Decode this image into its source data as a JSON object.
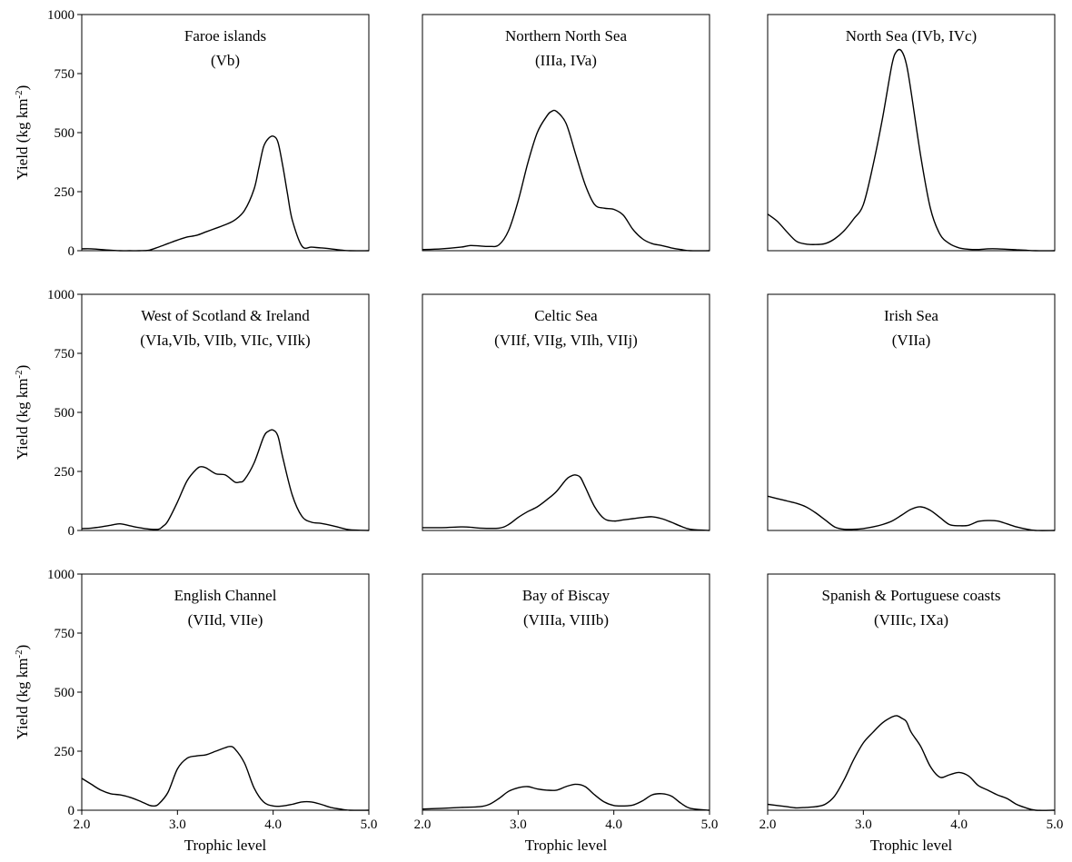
{
  "chart_data": [
    {
      "type": "line",
      "title": "Faroe islands",
      "subtitle": "(Vb)",
      "xlabel": "",
      "ylabel": "Yield (kg km-2)",
      "xlim": [
        2.0,
        5.0
      ],
      "ylim": [
        0,
        1000
      ],
      "x": [
        2.0,
        2.1,
        2.2,
        2.3,
        2.4,
        2.5,
        2.6,
        2.7,
        2.8,
        2.9,
        3.0,
        3.1,
        3.2,
        3.3,
        3.4,
        3.5,
        3.6,
        3.7,
        3.8,
        3.85,
        3.9,
        3.95,
        4.0,
        4.05,
        4.1,
        4.15,
        4.2,
        4.3,
        4.4,
        4.5,
        4.6,
        4.7,
        4.8,
        5.0
      ],
      "y": [
        8,
        8,
        5,
        2,
        0,
        0,
        0,
        2,
        15,
        30,
        45,
        58,
        65,
        80,
        95,
        110,
        130,
        170,
        260,
        350,
        440,
        475,
        485,
        460,
        360,
        240,
        130,
        20,
        15,
        12,
        8,
        3,
        0,
        0
      ]
    },
    {
      "type": "line",
      "title": "Northern North Sea",
      "subtitle": "(IIIa, IVa)",
      "xlabel": "",
      "ylabel": "",
      "xlim": [
        2.0,
        5.0
      ],
      "ylim": [
        0,
        1000
      ],
      "x": [
        2.0,
        2.2,
        2.4,
        2.5,
        2.6,
        2.7,
        2.8,
        2.9,
        3.0,
        3.1,
        3.2,
        3.3,
        3.35,
        3.4,
        3.5,
        3.6,
        3.7,
        3.8,
        3.9,
        4.0,
        4.1,
        4.2,
        4.3,
        4.4,
        4.5,
        4.6,
        4.7,
        4.8,
        5.0
      ],
      "y": [
        5,
        8,
        15,
        22,
        20,
        18,
        25,
        85,
        210,
        370,
        500,
        570,
        590,
        590,
        540,
        410,
        280,
        195,
        180,
        175,
        150,
        90,
        50,
        30,
        22,
        12,
        5,
        0,
        0
      ]
    },
    {
      "type": "line",
      "title": "North Sea (IVb, IVc)",
      "subtitle": "",
      "xlabel": "",
      "ylabel": "",
      "xlim": [
        2.0,
        5.0
      ],
      "ylim": [
        0,
        1000
      ],
      "x": [
        2.0,
        2.1,
        2.2,
        2.3,
        2.4,
        2.5,
        2.6,
        2.7,
        2.8,
        2.9,
        3.0,
        3.1,
        3.2,
        3.3,
        3.35,
        3.4,
        3.45,
        3.5,
        3.6,
        3.7,
        3.8,
        3.9,
        4.0,
        4.1,
        4.2,
        4.3,
        4.4,
        4.5,
        4.6,
        4.7,
        4.8,
        5.0
      ],
      "y": [
        155,
        125,
        80,
        40,
        28,
        26,
        30,
        50,
        85,
        135,
        195,
        360,
        560,
        790,
        845,
        845,
        790,
        670,
        400,
        180,
        70,
        30,
        12,
        6,
        5,
        8,
        8,
        6,
        4,
        2,
        0,
        0
      ]
    },
    {
      "type": "line",
      "title": "West of Scotland & Ireland",
      "subtitle": "(VIa,VIb, VIIb, VIIc, VIIk)",
      "xlabel": "",
      "ylabel": "Yield (kg km-2)",
      "xlim": [
        2.0,
        5.0
      ],
      "ylim": [
        0,
        1000
      ],
      "x": [
        2.0,
        2.1,
        2.2,
        2.3,
        2.4,
        2.5,
        2.6,
        2.7,
        2.8,
        2.85,
        2.9,
        3.0,
        3.1,
        3.2,
        3.25,
        3.3,
        3.4,
        3.5,
        3.6,
        3.65,
        3.7,
        3.8,
        3.9,
        3.95,
        4.0,
        4.05,
        4.1,
        4.2,
        4.3,
        4.4,
        4.5,
        4.6,
        4.7,
        4.8,
        5.0
      ],
      "y": [
        8,
        10,
        15,
        22,
        28,
        20,
        12,
        6,
        5,
        18,
        40,
        120,
        210,
        260,
        270,
        265,
        240,
        235,
        205,
        205,
        215,
        285,
        395,
        420,
        425,
        400,
        310,
        150,
        60,
        35,
        30,
        22,
        12,
        3,
        0
      ]
    },
    {
      "type": "line",
      "title": "Celtic Sea",
      "subtitle": "(VIIf, VIIg, VIIh, VIIj)",
      "xlabel": "",
      "ylabel": "",
      "xlim": [
        2.0,
        5.0
      ],
      "ylim": [
        0,
        1000
      ],
      "x": [
        2.0,
        2.2,
        2.4,
        2.5,
        2.6,
        2.8,
        2.9,
        3.0,
        3.1,
        3.2,
        3.3,
        3.4,
        3.5,
        3.55,
        3.6,
        3.65,
        3.7,
        3.8,
        3.9,
        4.0,
        4.1,
        4.2,
        4.3,
        4.4,
        4.5,
        4.6,
        4.7,
        4.8,
        5.0
      ],
      "y": [
        12,
        12,
        15,
        14,
        10,
        10,
        25,
        55,
        80,
        100,
        130,
        165,
        215,
        230,
        235,
        225,
        185,
        100,
        50,
        40,
        45,
        50,
        55,
        58,
        50,
        35,
        18,
        5,
        0
      ]
    },
    {
      "type": "line",
      "title": "Irish Sea",
      "subtitle": "(VIIa)",
      "xlabel": "",
      "ylabel": "",
      "xlim": [
        2.0,
        5.0
      ],
      "ylim": [
        0,
        1000
      ],
      "x": [
        2.0,
        2.1,
        2.2,
        2.3,
        2.4,
        2.5,
        2.6,
        2.7,
        2.8,
        2.9,
        3.0,
        3.1,
        3.2,
        3.3,
        3.4,
        3.5,
        3.6,
        3.7,
        3.8,
        3.9,
        4.0,
        4.1,
        4.2,
        4.3,
        4.4,
        4.5,
        4.6,
        4.7,
        4.8,
        5.0
      ],
      "y": [
        145,
        135,
        125,
        115,
        100,
        75,
        45,
        15,
        5,
        5,
        8,
        15,
        25,
        40,
        65,
        90,
        100,
        85,
        55,
        25,
        20,
        22,
        38,
        42,
        40,
        28,
        15,
        6,
        0,
        0
      ]
    },
    {
      "type": "line",
      "title": "English Channel",
      "subtitle": "(VIId, VIIe)",
      "xlabel": "Trophic level",
      "ylabel": "Yield (kg km-2)",
      "xlim": [
        2.0,
        5.0
      ],
      "ylim": [
        0,
        1000
      ],
      "x": [
        2.0,
        2.1,
        2.2,
        2.3,
        2.4,
        2.5,
        2.6,
        2.7,
        2.75,
        2.8,
        2.9,
        3.0,
        3.1,
        3.2,
        3.3,
        3.4,
        3.5,
        3.55,
        3.6,
        3.7,
        3.8,
        3.9,
        4.0,
        4.1,
        4.2,
        4.3,
        4.4,
        4.5,
        4.6,
        4.7,
        4.8,
        5.0
      ],
      "y": [
        135,
        110,
        85,
        70,
        65,
        55,
        40,
        22,
        18,
        25,
        75,
        175,
        220,
        230,
        235,
        250,
        265,
        270,
        260,
        200,
        95,
        35,
        18,
        18,
        25,
        35,
        35,
        25,
        12,
        5,
        0,
        0
      ]
    },
    {
      "type": "line",
      "title": "Bay of Biscay",
      "subtitle": "(VIIIa, VIIIb)",
      "xlabel": "Trophic level",
      "ylabel": "",
      "xlim": [
        2.0,
        5.0
      ],
      "ylim": [
        0,
        1000
      ],
      "x": [
        2.0,
        2.2,
        2.4,
        2.6,
        2.7,
        2.8,
        2.9,
        3.0,
        3.1,
        3.2,
        3.3,
        3.4,
        3.5,
        3.6,
        3.7,
        3.8,
        3.9,
        4.0,
        4.1,
        4.2,
        4.3,
        4.4,
        4.5,
        4.6,
        4.7,
        4.8,
        5.0
      ],
      "y": [
        5,
        8,
        12,
        15,
        25,
        50,
        80,
        95,
        100,
        90,
        85,
        85,
        100,
        110,
        100,
        65,
        35,
        20,
        18,
        22,
        40,
        65,
        70,
        60,
        30,
        8,
        0
      ]
    },
    {
      "type": "line",
      "title": "Spanish & Portuguese coasts",
      "subtitle": "(VIIIc, IXa)",
      "xlabel": "Trophic level",
      "ylabel": "",
      "xlim": [
        2.0,
        5.0
      ],
      "ylim": [
        0,
        1000
      ],
      "x": [
        2.0,
        2.1,
        2.2,
        2.3,
        2.4,
        2.5,
        2.6,
        2.7,
        2.8,
        2.9,
        3.0,
        3.1,
        3.2,
        3.3,
        3.35,
        3.4,
        3.45,
        3.5,
        3.6,
        3.7,
        3.8,
        3.9,
        4.0,
        4.1,
        4.2,
        4.3,
        4.4,
        4.5,
        4.6,
        4.7,
        4.8,
        5.0
      ],
      "y": [
        25,
        20,
        15,
        10,
        12,
        15,
        25,
        60,
        130,
        215,
        285,
        330,
        370,
        395,
        400,
        390,
        375,
        330,
        270,
        185,
        140,
        150,
        160,
        145,
        105,
        85,
        65,
        50,
        25,
        10,
        0,
        0
      ]
    }
  ],
  "axes": {
    "y_ticks": [
      "0",
      "250",
      "500",
      "750",
      "1000"
    ],
    "x_ticks": [
      "2.0",
      "3.0",
      "4.0",
      "5.0"
    ],
    "ylabel_text": "Yield (kg km",
    "ylabel_sup": "-2",
    "ylabel_close": ")",
    "xlabel_text": "Trophic level"
  }
}
